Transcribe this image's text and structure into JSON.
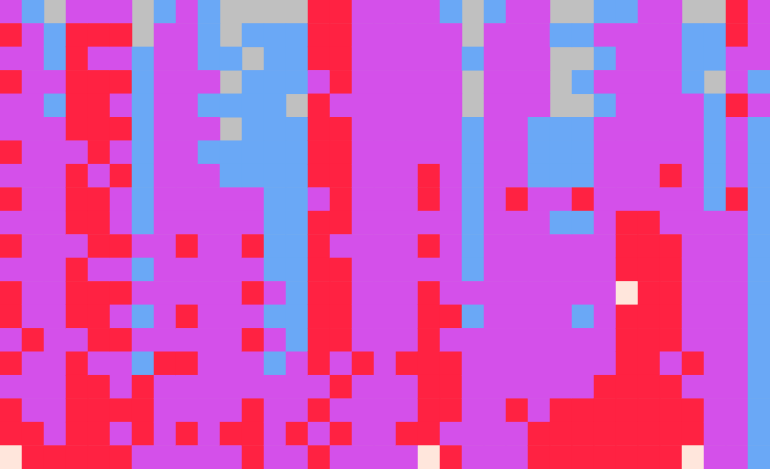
{
  "chart_data": {
    "type": "heatmap",
    "tick_labels": false,
    "zlim": [
      1,
      4
    ],
    "colors": [
      "#6aa8f6",
      "#d450ea",
      "#ff2242",
      "#ffe6dc"
    ],
    "cells": [
      [
        2,
        3,
        2,
        3,
        2,
        2,
        3,
        2,
        3,
        2,
        3,
        2,
        3,
        3,
        2,
        3,
        2,
        3,
        3,
        4
      ],
      [
        1,
        2,
        2,
        2,
        2,
        2,
        2,
        2,
        2,
        2,
        2,
        2,
        2,
        2,
        3,
        2,
        2,
        2,
        3,
        3
      ],
      [
        null,
        1,
        1,
        2,
        1,
        2,
        2,
        2,
        2,
        2,
        2,
        2,
        2,
        2,
        2,
        2,
        2,
        2,
        2,
        3
      ],
      [
        2,
        3,
        3,
        3,
        3,
        3,
        2,
        3,
        3,
        3,
        2,
        3,
        3,
        3,
        2,
        3,
        3,
        3,
        3,
        3
      ],
      [
        2,
        3,
        2,
        3,
        3,
        3,
        3,
        2,
        3,
        3,
        3,
        2,
        3,
        3,
        3,
        2,
        3,
        3,
        3,
        3
      ],
      [
        2,
        3,
        2,
        3,
        2,
        3,
        2,
        3,
        2,
        2,
        3,
        2,
        3,
        2,
        3,
        2,
        2,
        3,
        2,
        3
      ],
      [
        null,
        null,
        1,
        1,
        1,
        1,
        1,
        1,
        1,
        1,
        2,
        1,
        2,
        1,
        2,
        1,
        3,
        3,
        3,
        2
      ],
      [
        1,
        2,
        2,
        2,
        2,
        2,
        2,
        2,
        2,
        2,
        2,
        2,
        2,
        2,
        2,
        3,
        2,
        2,
        2,
        2
      ],
      [
        2,
        2,
        2,
        2,
        2,
        2,
        2,
        2,
        2,
        2,
        3,
        2,
        2,
        3,
        2,
        3,
        2,
        2,
        3,
        2
      ],
      [
        1,
        1,
        1,
        2,
        1,
        2,
        1,
        2,
        2,
        2,
        2,
        2,
        2,
        2,
        2,
        2,
        2,
        2,
        2,
        2
      ],
      [
        null,
        null,
        1,
        null,
        1,
        null,
        1,
        1,
        2,
        2,
        2,
        2,
        2,
        2,
        2,
        2,
        2,
        2,
        3,
        2
      ],
      [
        null,
        1,
        null,
        1,
        1,
        1,
        1,
        1,
        2,
        2,
        3,
        2,
        3,
        2,
        3,
        2,
        2,
        3,
        3,
        3
      ],
      [
        null,
        1,
        1,
        1,
        1,
        1,
        1,
        1,
        1,
        1,
        1,
        1,
        2,
        1,
        2,
        1,
        2,
        2,
        2,
        2
      ],
      [
        null,
        1,
        1,
        1,
        null,
        1,
        1,
        1,
        1,
        1,
        1,
        1,
        1,
        1,
        1,
        2,
        2,
        2,
        3,
        2
      ],
      [
        3,
        3,
        3,
        2,
        3,
        3,
        3,
        3,
        2,
        3,
        3,
        3,
        3,
        3,
        3,
        3,
        2,
        3,
        2,
        3
      ],
      [
        3,
        3,
        3,
        3,
        2,
        3,
        3,
        3,
        3,
        3,
        2,
        3,
        3,
        3,
        3,
        2,
        3,
        2,
        3,
        2
      ],
      [
        2,
        2,
        2,
        2,
        2,
        2,
        2,
        2,
        2,
        2,
        2,
        2,
        2,
        2,
        2,
        3,
        2,
        2,
        2,
        2
      ],
      [
        2,
        2,
        2,
        2,
        2,
        2,
        2,
        2,
        2,
        2,
        2,
        2,
        2,
        2,
        2,
        2,
        2,
        2,
        2,
        2
      ],
      [
        2,
        2,
        2,
        2,
        2,
        2,
        2,
        2,
        2,
        2,
        2,
        2,
        2,
        2,
        2,
        3,
        2,
        2,
        3,
        2
      ],
      [
        2,
        2,
        2,
        2,
        2,
        2,
        2,
        3,
        3,
        2,
        3,
        2,
        3,
        3,
        3,
        3,
        3,
        3,
        3,
        4
      ],
      [
        1,
        2,
        2,
        2,
        2,
        2,
        2,
        2,
        2,
        2,
        2,
        2,
        2,
        3,
        2,
        3,
        3,
        3,
        2,
        3
      ],
      [
        null,
        null,
        1,
        null,
        null,
        1,
        1,
        1,
        1,
        1,
        1,
        1,
        2,
        1,
        2,
        2,
        2,
        2,
        2,
        2
      ],
      [
        1,
        2,
        2,
        2,
        2,
        2,
        2,
        2,
        2,
        2,
        2,
        2,
        2,
        2,
        2,
        2,
        2,
        2,
        2,
        2
      ],
      [
        2,
        2,
        2,
        2,
        2,
        2,
        2,
        2,
        3,
        2,
        2,
        2,
        2,
        2,
        2,
        2,
        2,
        3,
        2,
        2
      ],
      [
        2,
        2,
        2,
        2,
        2,
        1,
        1,
        1,
        2,
        2,
        2,
        2,
        2,
        2,
        2,
        2,
        2,
        2,
        3,
        3
      ],
      [
        null,
        1,
        null,
        null,
        null,
        1,
        1,
        1,
        2,
        1,
        2,
        2,
        2,
        2,
        2,
        2,
        2,
        3,
        3,
        3
      ],
      [
        null,
        1,
        null,
        1,
        null,
        1,
        1,
        1,
        3,
        1,
        2,
        2,
        2,
        1,
        2,
        2,
        2,
        3,
        3,
        3
      ],
      [
        1,
        2,
        1,
        2,
        1,
        2,
        2,
        2,
        2,
        2,
        2,
        2,
        2,
        2,
        2,
        2,
        3,
        3,
        3,
        3
      ],
      [
        1,
        2,
        2,
        2,
        2,
        2,
        2,
        2,
        2,
        3,
        3,
        3,
        4,
        3,
        3,
        3,
        3,
        3,
        3,
        3
      ],
      [
        2,
        2,
        2,
        2,
        2,
        2,
        2,
        2,
        2,
        3,
        3,
        3,
        3,
        3,
        3,
        3,
        3,
        3,
        3,
        3
      ],
      [
        2,
        2,
        2,
        2,
        2,
        2,
        2,
        3,
        2,
        2,
        3,
        3,
        3,
        3,
        3,
        2,
        3,
        3,
        3,
        3
      ],
      [
        null,
        1,
        1,
        1,
        2,
        2,
        2,
        2,
        2,
        2,
        2,
        2,
        2,
        2,
        2,
        3,
        2,
        3,
        3,
        4
      ],
      [
        null,
        1,
        1,
        null,
        1,
        1,
        1,
        1,
        1,
        2,
        2,
        2,
        2,
        2,
        2,
        2,
        2,
        2,
        2,
        2
      ],
      [
        3,
        3,
        2,
        2,
        3,
        2,
        2,
        2,
        3,
        2,
        2,
        2,
        2,
        2,
        2,
        2,
        2,
        2,
        2,
        2
      ],
      [
        2,
        2,
        2,
        1,
        2,
        1,
        1,
        1,
        1,
        1,
        1,
        1,
        1,
        1,
        1,
        1,
        1,
        1,
        1,
        1
      ]
    ]
  }
}
